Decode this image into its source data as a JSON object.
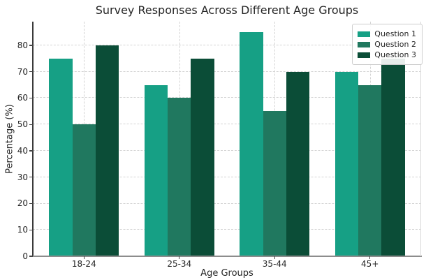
{
  "chart_data": {
    "type": "bar",
    "title": "Survey Responses Across Different Age Groups",
    "xlabel": "Age Groups",
    "ylabel": "Percentage (%)",
    "categories": [
      "18-24",
      "25-34",
      "35-44",
      "45+"
    ],
    "series": [
      {
        "name": "Question 1",
        "color": "#16a085",
        "values": [
          75,
          65,
          85,
          70
        ]
      },
      {
        "name": "Question 2",
        "color": "#20785f",
        "values": [
          50,
          60,
          55,
          65
        ]
      },
      {
        "name": "Question 3",
        "color": "#0b4d37",
        "values": [
          80,
          75,
          70,
          75
        ]
      }
    ],
    "ylim": [
      0,
      89
    ],
    "yticks": [
      0,
      10,
      20,
      30,
      40,
      50,
      60,
      70,
      80
    ],
    "grid": true,
    "grid_style": "dashed",
    "legend_position": "upper right"
  }
}
